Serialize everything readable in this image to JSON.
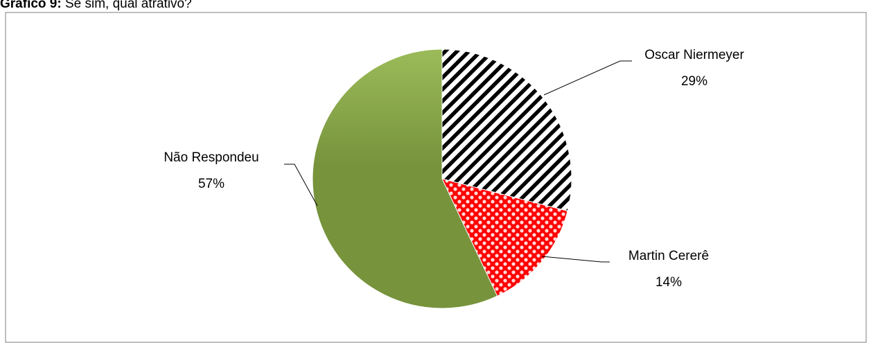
{
  "chart_data": {
    "type": "pie",
    "figure_label": "Gráfico 9:",
    "title": "Se sim, qual atrativo?",
    "categories": [
      "Oscar Niermeyer",
      "Martin Cererê",
      "Não Respondeu"
    ],
    "values": [
      29,
      14,
      57
    ],
    "value_labels": [
      "29%",
      "14%",
      "57%"
    ],
    "colors": [
      "#000000",
      "#ff0000",
      "#77933c"
    ]
  }
}
